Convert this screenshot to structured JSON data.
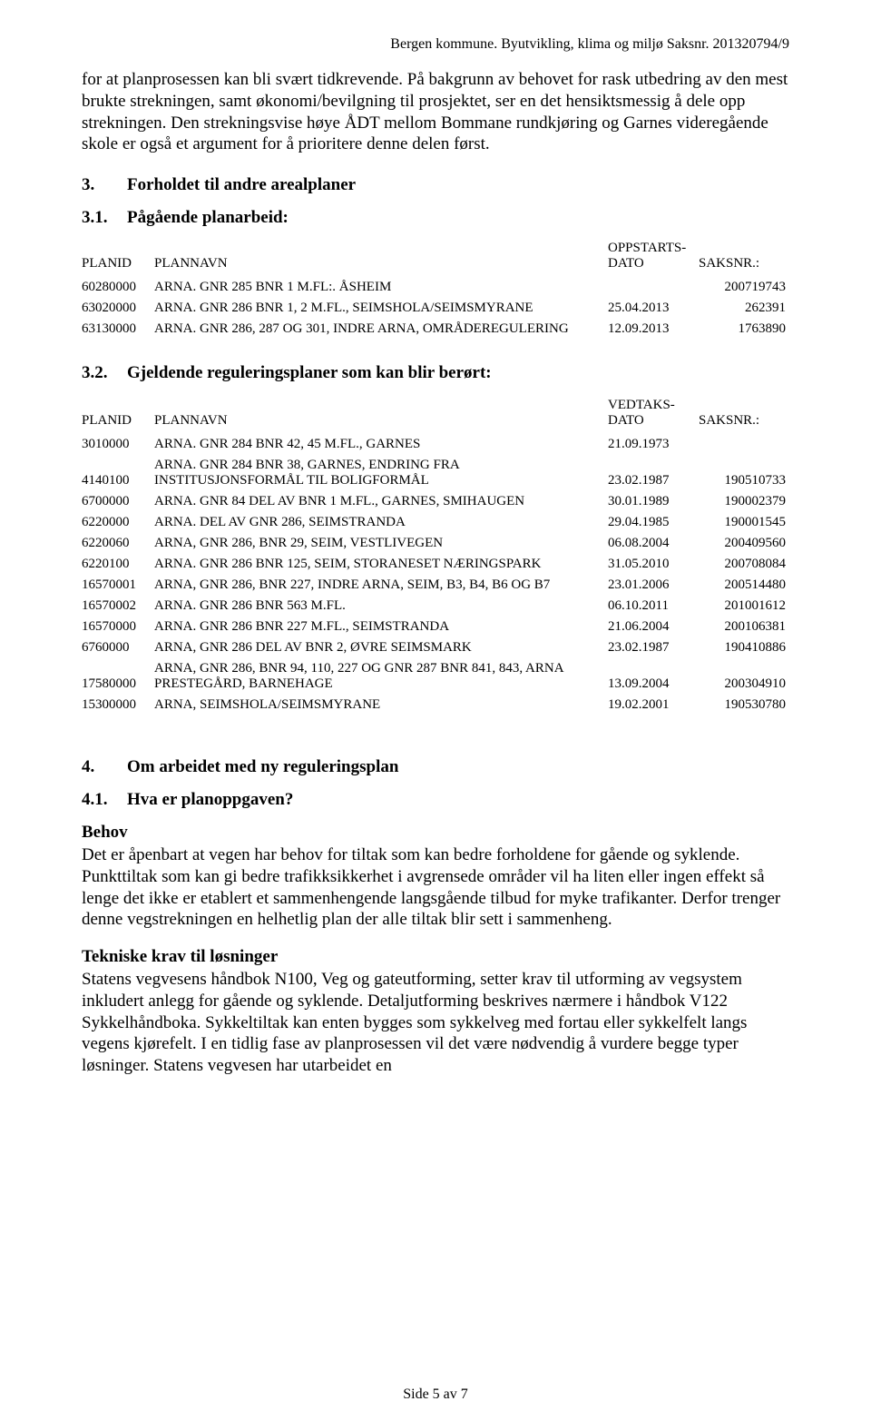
{
  "header": "Bergen kommune. Byutvikling, klima og miljø   Saksnr. 201320794/9",
  "intro_para": "for at planprosessen kan bli svært tidkrevende. På bakgrunn av behovet for rask utbedring av den mest brukte strekningen, samt økonomi/bevilgning til prosjektet, ser en det hensiktsmessig å dele opp strekningen. Den strekningsvise høye ÅDT mellom Bommane rundkjøring og Garnes videregående skole er også et argument for å prioritere denne delen først.",
  "sec3_num": "3.",
  "sec3_title": "Forholdet til andre arealplaner",
  "sec31_num": "3.1.",
  "sec31_title": "Pågående planarbeid:",
  "table_headers": {
    "planid": "PLANID",
    "plannavn": "PLANNAVN",
    "oppstarts_top": "OPPSTARTS-",
    "oppstarts_bot": "DATO",
    "vedtaks_top": "VEDTAKS-",
    "vedtaks_bot": "DATO",
    "saksnr": "SAKSNR.:"
  },
  "ongoing_rows": [
    {
      "planid": "60280000",
      "navn": "ARNA. GNR 285 BNR 1 M.FL:. ÅSHEIM",
      "dato": "",
      "saksnr": "200719743"
    },
    {
      "planid": "63020000",
      "navn": "ARNA. GNR 286 BNR 1, 2 M.FL., SEIMSHOLA/SEIMSMYRANE",
      "dato": "25.04.2013",
      "saksnr": "262391"
    },
    {
      "planid": "63130000",
      "navn": "ARNA. GNR 286, 287 OG 301, INDRE ARNA, OMRÅDEREGULERING",
      "dato": "12.09.2013",
      "saksnr": "1763890"
    }
  ],
  "sec32_num": "3.2.",
  "sec32_title": "Gjeldende reguleringsplaner som kan blir berørt:",
  "current_rows": [
    {
      "planid": "3010000",
      "navn": "ARNA. GNR 284 BNR 42, 45 M.FL., GARNES",
      "dato": "21.09.1973",
      "saksnr": ""
    },
    {
      "planid": "4140100",
      "navn": "ARNA. GNR 284 BNR 38, GARNES, ENDRING FRA INSTITUSJONSFORMÅL TIL BOLIGFORMÅL",
      "dato": "23.02.1987",
      "saksnr": "190510733"
    },
    {
      "planid": "6700000",
      "navn": "ARNA. GNR 84 DEL AV BNR 1 M.FL., GARNES, SMIHAUGEN",
      "dato": "30.01.1989",
      "saksnr": "190002379"
    },
    {
      "planid": "6220000",
      "navn": "ARNA. DEL AV GNR 286, SEIMSTRANDA",
      "dato": "29.04.1985",
      "saksnr": "190001545"
    },
    {
      "planid": "6220060",
      "navn": "ARNA, GNR 286, BNR 29, SEIM, VESTLIVEGEN",
      "dato": "06.08.2004",
      "saksnr": "200409560"
    },
    {
      "planid": "6220100",
      "navn": "ARNA. GNR 286 BNR 125, SEIM, STORANESET NÆRINGSPARK",
      "dato": "31.05.2010",
      "saksnr": "200708084"
    },
    {
      "planid": "16570001",
      "navn": "ARNA, GNR 286, BNR 227, INDRE ARNA, SEIM, B3, B4, B6 OG B7",
      "dato": "23.01.2006",
      "saksnr": "200514480"
    },
    {
      "planid": "16570002",
      "navn": "ARNA. GNR 286 BNR 563 M.FL.",
      "dato": "06.10.2011",
      "saksnr": "201001612"
    },
    {
      "planid": "16570000",
      "navn": "ARNA. GNR 286 BNR 227 M.FL., SEIMSTRANDA",
      "dato": "21.06.2004",
      "saksnr": "200106381"
    },
    {
      "planid": "6760000",
      "navn": "ARNA, GNR 286 DEL AV BNR 2, ØVRE SEIMSMARK",
      "dato": "23.02.1987",
      "saksnr": "190410886"
    },
    {
      "planid": "17580000",
      "navn": "ARNA, GNR 286, BNR 94, 110, 227 OG GNR 287 BNR 841, 843, ARNA PRESTEGÅRD, BARNEHAGE",
      "dato": "13.09.2004",
      "saksnr": "200304910"
    },
    {
      "planid": "15300000",
      "navn": "ARNA, SEIMSHOLA/SEIMSMYRANE",
      "dato": "19.02.2001",
      "saksnr": "190530780"
    }
  ],
  "sec4_num": "4.",
  "sec4_title": "Om arbeidet med ny reguleringsplan",
  "sec41_num": "4.1.",
  "sec41_title": "Hva er planoppgaven?",
  "behov_label": "Behov",
  "behov_para": "Det er åpenbart at vegen har behov for tiltak som kan bedre forholdene for gående og syklende. Punkttiltak som kan gi bedre trafikksikkerhet i avgrensede områder vil ha liten eller ingen effekt så lenge det ikke er etablert et sammenhengende langsgående tilbud for myke trafikanter.  Derfor trenger denne vegstrekningen en helhetlig plan der alle tiltak blir sett i sammenheng.",
  "tekn_label": "Tekniske krav til løsninger",
  "tekn_para": "Statens vegvesens håndbok N100, Veg og gateutforming, setter krav til utforming av vegsystem inkludert anlegg for gående og syklende. Detaljutforming beskrives nærmere i håndbok V122 Sykkelhåndboka. Sykkeltiltak kan enten bygges som sykkelveg med fortau eller sykkelfelt langs vegens kjørefelt. I en tidlig fase av planprosessen vil det være nødvendig å vurdere begge typer løsninger. Statens vegvesen har utarbeidet en",
  "footer": "Side 5 av 7"
}
